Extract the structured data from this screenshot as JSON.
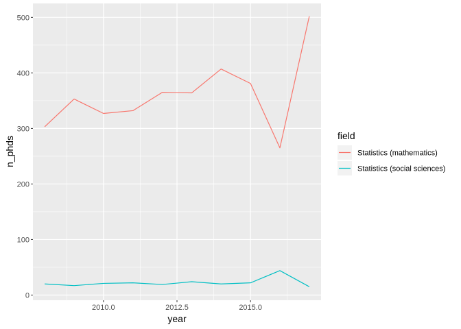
{
  "chart_data": {
    "type": "line",
    "xlabel": "year",
    "ylabel": "n_phds",
    "xlim": [
      2007.6,
      2017.4
    ],
    "ylim": [
      -9.3,
      525.1
    ],
    "x_ticks": [
      2010,
      2012.5,
      2015
    ],
    "x_tick_labels": [
      "2010.0",
      "2012.5",
      "2015.0"
    ],
    "y_ticks": [
      0,
      100,
      200,
      300,
      400,
      500
    ],
    "y_tick_labels": [
      "0",
      "100",
      "200",
      "300",
      "400",
      "500"
    ],
    "x": [
      2008,
      2009,
      2010,
      2011,
      2012,
      2013,
      2014,
      2015,
      2016,
      2017
    ],
    "series": [
      {
        "name": "Statistics (mathematics)",
        "color": "#F8766D",
        "values": [
          303,
          353,
          327,
          332,
          365,
          364,
          407,
          381,
          265,
          502
        ]
      },
      {
        "name": "Statistics (social sciences)",
        "color": "#00BFC4",
        "values": [
          20,
          17,
          21,
          22,
          19,
          24,
          20,
          22,
          44,
          15
        ]
      }
    ],
    "legend_title": "field",
    "legend_position": "right",
    "grid": true,
    "panel_background": "#EBEBEB",
    "grid_color": "#FFFFFF"
  }
}
